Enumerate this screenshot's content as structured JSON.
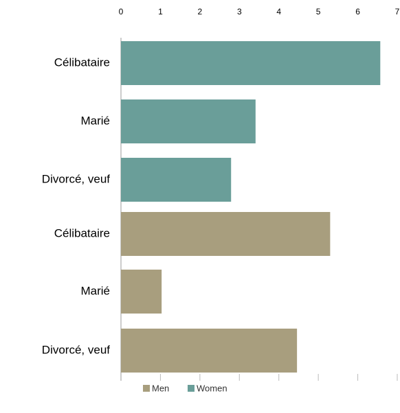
{
  "chart_data": {
    "type": "barh",
    "categories": [
      "Célibataire",
      "Marié",
      "Divorcé, veuf",
      "Célibataire",
      "Marié",
      "Divorcé, veuf"
    ],
    "series": [
      {
        "name": "Men",
        "color": "#a89e7e",
        "values": [
          null,
          null,
          null,
          5.3,
          1.03,
          4.46
        ]
      },
      {
        "name": "Women",
        "color": "#6a9e99",
        "values": [
          6.57,
          3.41,
          2.79,
          null,
          null,
          null
        ]
      }
    ],
    "xlim": [
      0,
      7
    ],
    "xticks": [
      0,
      1,
      2,
      3,
      4,
      5,
      6,
      7
    ]
  }
}
